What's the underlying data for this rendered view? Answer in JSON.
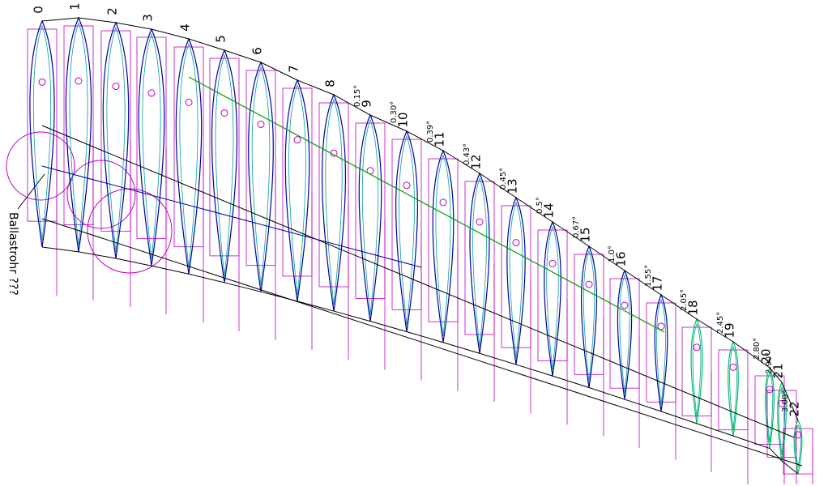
{
  "ribs": [
    {
      "number": "0"
    },
    {
      "number": "1"
    },
    {
      "number": "2"
    },
    {
      "number": "3"
    },
    {
      "number": "4"
    },
    {
      "number": "5"
    },
    {
      "number": "6"
    },
    {
      "number": "7"
    },
    {
      "number": "8"
    },
    {
      "number": "9",
      "angle": "0.15°"
    },
    {
      "number": "10",
      "angle": "0.30°"
    },
    {
      "number": "11",
      "angle": "0.39°"
    },
    {
      "number": "12",
      "angle": "0.43°"
    },
    {
      "number": "13",
      "angle": "0.45°"
    },
    {
      "number": "14",
      "angle": "0.5°"
    },
    {
      "number": "15",
      "angle": "0.67°"
    },
    {
      "number": "16",
      "angle": "1.0°"
    },
    {
      "number": "17",
      "angle": "1.55°"
    },
    {
      "number": "18",
      "angle": "2.05°"
    },
    {
      "number": "19",
      "angle": "2.45°"
    },
    {
      "number": "20",
      "angle": "2.80°"
    },
    {
      "number": "21",
      "angle": "2.90°"
    },
    {
      "number": "22",
      "angle": "3.00°"
    }
  ],
  "note": "Ballastrohr ???"
}
